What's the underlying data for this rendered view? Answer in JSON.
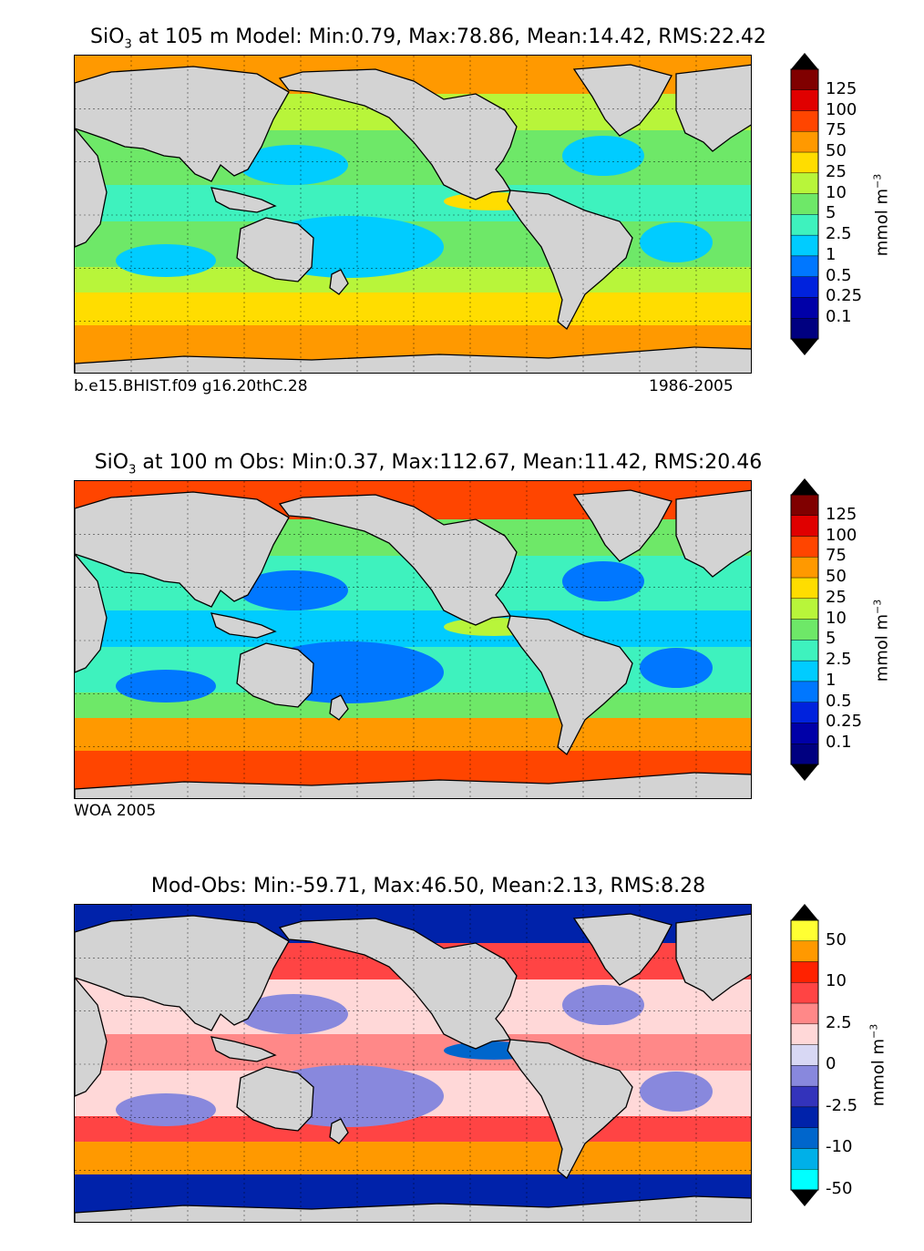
{
  "panels": [
    {
      "id": "model",
      "title": {
        "pre": "SiO",
        "sub": "3",
        "post": " at 105 m Model: Min:0.79, Max:78.86, Mean:14.42, RMS:22.42"
      },
      "caption_left": "b.e15.BHIST.f09 g16.20thC.28",
      "caption_right": "1986-2005",
      "colorbar": {
        "ticks": [
          "125",
          "100",
          "75",
          "50",
          "25",
          "10",
          "5",
          "2.5",
          "1",
          "0.5",
          "0.25",
          "0.1"
        ],
        "colors": [
          "#800000",
          "#e00000",
          "#ff4500",
          "#ff9900",
          "#ffdd00",
          "#b8f53a",
          "#6ee868",
          "#3ef2be",
          "#00ccff",
          "#0077ff",
          "#0022dd",
          "#0000a8",
          "#000080"
        ],
        "units": {
          "base": "mmol m",
          "sup": "−3"
        }
      },
      "map_colors": {
        "land": "#d3d3d3",
        "polar": "#ff9900",
        "south_band": "#ffdd00",
        "temperate": "#b8f53a",
        "subtropical": "#6ee868",
        "tropical": "#3ef2be",
        "gyre": "#00ccff",
        "upwelling": "#ffdd00"
      }
    },
    {
      "id": "obs",
      "title": {
        "pre": "SiO",
        "sub": "3",
        "post": " at 100 m Obs: Min:0.37, Max:112.67, Mean:11.42, RMS:20.46"
      },
      "caption_left": "WOA 2005",
      "caption_right": "",
      "colorbar": {
        "ticks": [
          "125",
          "100",
          "75",
          "50",
          "25",
          "10",
          "5",
          "2.5",
          "1",
          "0.5",
          "0.25",
          "0.1"
        ],
        "colors": [
          "#800000",
          "#e00000",
          "#ff4500",
          "#ff9900",
          "#ffdd00",
          "#b8f53a",
          "#6ee868",
          "#3ef2be",
          "#00ccff",
          "#0077ff",
          "#0022dd",
          "#0000a8",
          "#000080"
        ],
        "units": {
          "base": "mmol m",
          "sup": "−3"
        }
      },
      "map_colors": {
        "land": "#d3d3d3",
        "polar": "#ff4500",
        "south_band": "#ff9900",
        "temperate": "#6ee868",
        "subtropical": "#3ef2be",
        "tropical": "#00ccff",
        "gyre": "#0077ff",
        "upwelling": "#b8f53a"
      }
    },
    {
      "id": "diff",
      "title": {
        "pre": "Mod-Obs: Min:-59.71, Max:46.50, Mean:2.13, RMS:8.28",
        "sub": "",
        "post": ""
      },
      "caption_left": "",
      "caption_right": "",
      "colorbar": {
        "ticks": [
          "50",
          "10",
          "2.5",
          "0",
          "-2.5",
          "-10",
          "-50"
        ],
        "colors": [
          "#ffff33",
          "#ff9900",
          "#ff2200",
          "#ff4444",
          "#ff8888",
          "#ffd8d8",
          "#d8d8f4",
          "#8888dd",
          "#3333bb",
          "#0022aa",
          "#0066cc",
          "#00b0e8",
          "#00ffff"
        ],
        "units": {
          "base": "mmol m",
          "sup": "−3"
        }
      },
      "map_colors": {
        "land": "#d3d3d3",
        "polar": "#0022aa",
        "south_band": "#ff9900",
        "temperate": "#ff4444",
        "subtropical": "#ffd8d8",
        "tropical": "#ff8888",
        "gyre": "#8888dd",
        "upwelling": "#0066cc"
      }
    }
  ]
}
